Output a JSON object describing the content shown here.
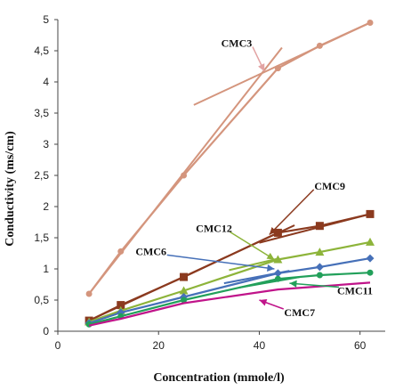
{
  "chart_data": {
    "type": "scatter",
    "xlabel": "Concentration (mmole/l)",
    "ylabel": "Conductivity (ms/cm)",
    "xlim": [
      0,
      65
    ],
    "ylim": [
      0,
      5
    ],
    "xticks": [
      "0",
      "20",
      "40",
      "60"
    ],
    "yticks": [
      "0",
      "0,5",
      "1",
      "1,5",
      "2",
      "2,5",
      "3",
      "3,5",
      "4",
      "4,5",
      "5"
    ],
    "grid": false,
    "legend": "none",
    "series": [
      {
        "name": "CMC3",
        "color": "#d4957d",
        "marker": "circle",
        "x": [
          6.2,
          12.5,
          25,
          43.7,
          52,
          62
        ],
        "y": [
          0.6,
          1.28,
          2.5,
          4.22,
          4.58,
          4.95
        ],
        "fit_lines": [
          {
            "x": [
              6.2,
              44.5
            ],
            "y": [
              0.6,
              4.55
            ]
          },
          {
            "x": [
              27,
              62
            ],
            "y": [
              3.63,
              4.95
            ]
          }
        ]
      },
      {
        "name": "CMC9",
        "color": "#8b3a1f",
        "marker": "square",
        "x": [
          6.2,
          12.5,
          25,
          43.7,
          52,
          62
        ],
        "y": [
          0.17,
          0.42,
          0.87,
          1.58,
          1.69,
          1.88
        ],
        "fit_lines": [
          {
            "x": [
              6.2,
              47
            ],
            "y": [
              0.17,
              1.7
            ]
          },
          {
            "x": [
              40,
              62
            ],
            "y": [
              1.42,
              1.88
            ]
          }
        ]
      },
      {
        "name": "CMC12",
        "color": "#8db43a",
        "marker": "triangle",
        "x": [
          6.2,
          12.5,
          25,
          43.7,
          52,
          62
        ],
        "y": [
          0.15,
          0.33,
          0.65,
          1.15,
          1.27,
          1.43
        ],
        "fit_lines": [
          {
            "x": [
              34,
              44
            ],
            "y": [
              0.98,
              1.17
            ]
          }
        ]
      },
      {
        "name": "CMC6",
        "color": "#4670b8",
        "marker": "diamond",
        "x": [
          6.2,
          12.5,
          25,
          43.7,
          52,
          62
        ],
        "y": [
          0.13,
          0.3,
          0.55,
          0.93,
          1.03,
          1.17
        ],
        "fit_lines": [
          {
            "x": [
              33,
              46
            ],
            "y": [
              0.77,
              0.97
            ]
          }
        ]
      },
      {
        "name": "CMC11",
        "color": "#22a05a",
        "marker": "circle",
        "x": [
          6.2,
          12.5,
          25,
          43.7,
          52,
          62
        ],
        "y": [
          0.11,
          0.24,
          0.5,
          0.84,
          0.9,
          0.94
        ],
        "fit_lines": [
          {
            "x": [
              36,
              48
            ],
            "y": [
              0.7,
              0.87
            ]
          }
        ]
      },
      {
        "name": "CMC7",
        "color": "#c0148a",
        "marker": "none",
        "x": [
          6.2,
          12.5,
          25,
          43.7,
          52,
          62
        ],
        "y": [
          0.09,
          0.2,
          0.45,
          0.67,
          0.72,
          0.78
        ],
        "fit_lines": []
      }
    ],
    "annotations": [
      {
        "text": "CMC3",
        "at": [
          35.5,
          4.62
        ],
        "arrow_to": [
          41,
          4.17
        ],
        "color": "#e2a3a3"
      },
      {
        "text": "CMC9",
        "at": [
          54,
          2.33
        ],
        "arrow_to": [
          42,
          1.55
        ],
        "color": "#8b3a1f"
      },
      {
        "text": "CMC12",
        "at": [
          31,
          1.65
        ],
        "arrow_to": [
          43,
          1.15
        ],
        "color": "#8db43a"
      },
      {
        "text": "CMC6",
        "at": [
          18.5,
          1.28
        ],
        "arrow_to": [
          43,
          1.0
        ],
        "color": "#4670b8"
      },
      {
        "text": "CMC11",
        "at": [
          59,
          0.65
        ],
        "arrow_to": [
          46,
          0.77
        ],
        "color": "#22a05a"
      },
      {
        "text": "CMC7",
        "at": [
          48,
          0.3
        ],
        "arrow_to": [
          40,
          0.5
        ],
        "color": "#c0148a"
      }
    ]
  }
}
